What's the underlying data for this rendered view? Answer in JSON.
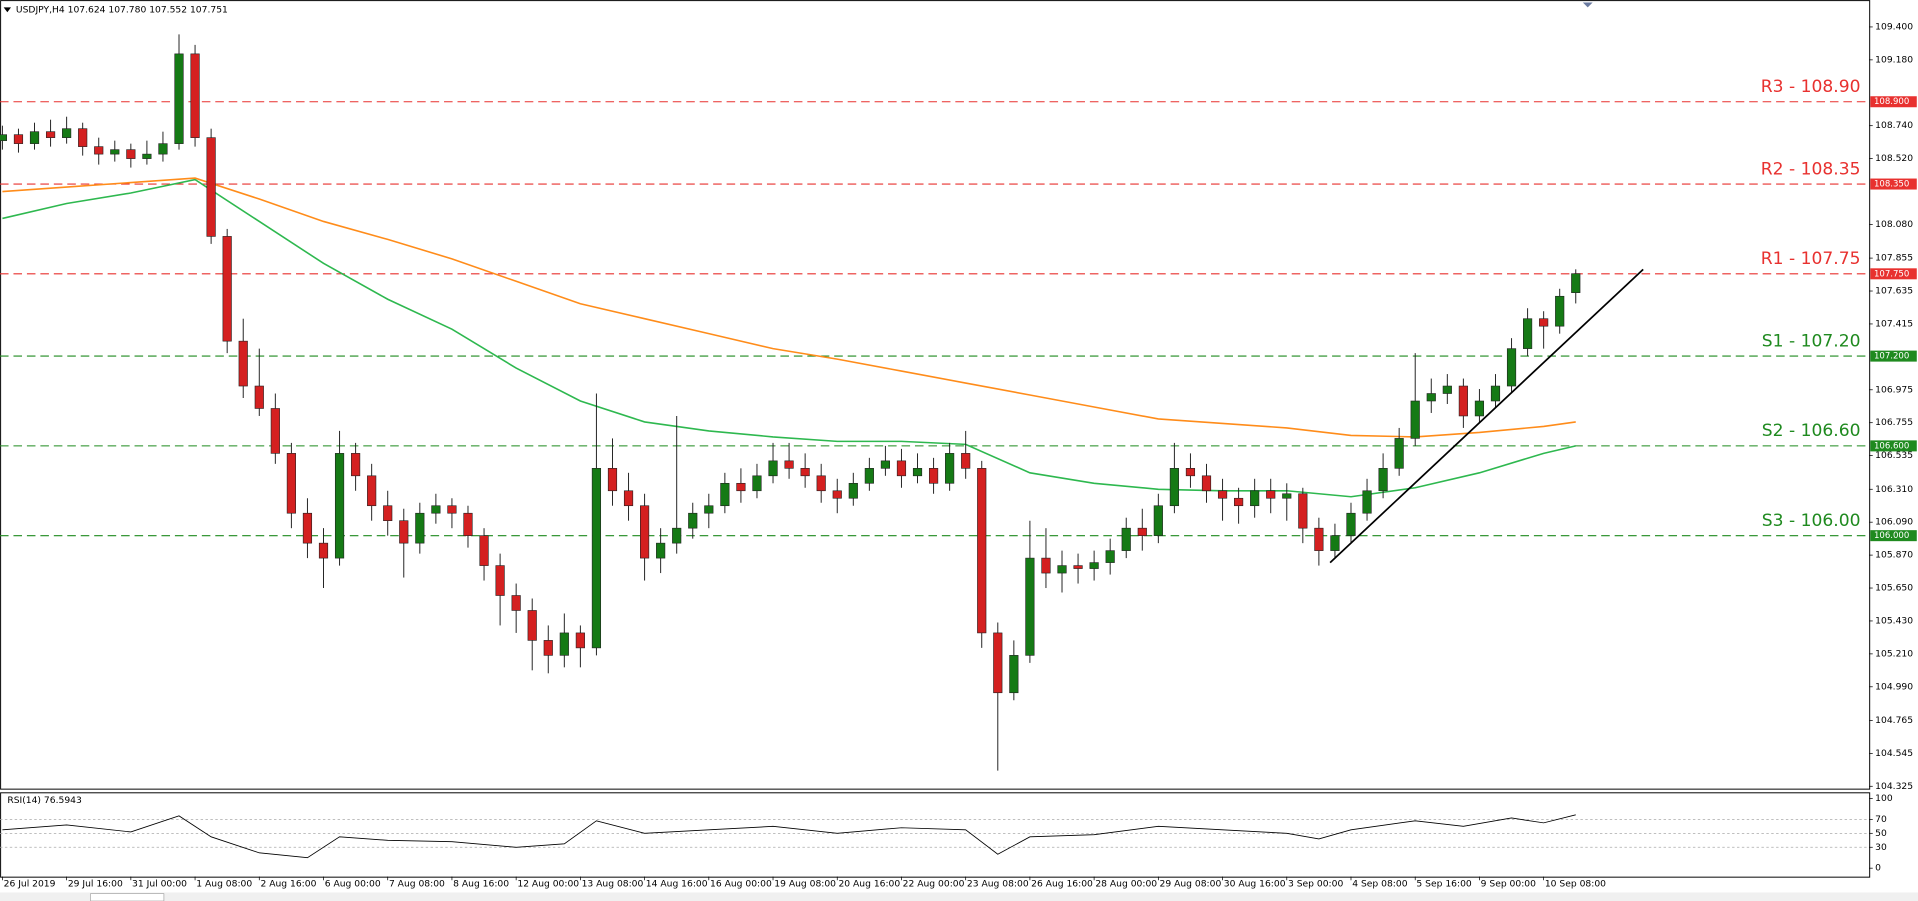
{
  "chart_data": {
    "type": "candlestick",
    "header": "USDJPY,H4  107.624 107.780 107.552 107.751",
    "up_color": "#157a15",
    "down_color": "#d42020",
    "xlim": [
      -0.15,
      116.27
    ],
    "ylim": [
      104.31,
      109.58
    ],
    "yticks": [
      {
        "value": 109.4,
        "label": "109.400"
      },
      {
        "value": 109.18,
        "label": "109.180"
      },
      {
        "value": 108.74,
        "label": "108.740"
      },
      {
        "value": 108.52,
        "label": "108.520"
      },
      {
        "value": 108.08,
        "label": "108.080"
      },
      {
        "value": 107.855,
        "label": "107.855"
      },
      {
        "value": 107.635,
        "label": "107.635"
      },
      {
        "value": 107.415,
        "label": "107.415"
      },
      {
        "value": 106.975,
        "label": "106.975"
      },
      {
        "value": 106.755,
        "label": "106.755"
      },
      {
        "value": 106.535,
        "label": "106.535"
      },
      {
        "value": 106.31,
        "label": "106.310"
      },
      {
        "value": 106.09,
        "label": "106.090"
      },
      {
        "value": 105.87,
        "label": "105.870"
      },
      {
        "value": 105.65,
        "label": "105.650"
      },
      {
        "value": 105.43,
        "label": "105.430"
      },
      {
        "value": 105.21,
        "label": "105.210"
      },
      {
        "value": 104.99,
        "label": "104.990"
      },
      {
        "value": 104.765,
        "label": "104.765"
      },
      {
        "value": 104.545,
        "label": "104.545"
      },
      {
        "value": 104.325,
        "label": "104.325"
      }
    ],
    "xticks": [
      {
        "value": 0,
        "label": "26 Jul 2019"
      },
      {
        "value": 4,
        "label": "29 Jul 16:00"
      },
      {
        "value": 8,
        "label": "31 Jul 00:00"
      },
      {
        "value": 12,
        "label": "1 Aug 08:00"
      },
      {
        "value": 16,
        "label": "2 Aug 16:00"
      },
      {
        "value": 20,
        "label": "6 Aug 00:00"
      },
      {
        "value": 24,
        "label": "7 Aug 08:00"
      },
      {
        "value": 28,
        "label": "8 Aug 16:00"
      },
      {
        "value": 32,
        "label": "12 Aug 00:00"
      },
      {
        "value": 36,
        "label": "13 Aug 08:00"
      },
      {
        "value": 40,
        "label": "14 Aug 16:00"
      },
      {
        "value": 44,
        "label": "16 Aug 00:00"
      },
      {
        "value": 48,
        "label": "19 Aug 08:00"
      },
      {
        "value": 52,
        "label": "20 Aug 16:00"
      },
      {
        "value": 56,
        "label": "22 Aug 00:00"
      },
      {
        "value": 60,
        "label": "23 Aug 08:00"
      },
      {
        "value": 64,
        "label": "26 Aug 16:00"
      },
      {
        "value": 68,
        "label": "28 Aug 00:00"
      },
      {
        "value": 72,
        "label": "29 Aug 08:00"
      },
      {
        "value": 76,
        "label": "30 Aug 16:00"
      },
      {
        "value": 80,
        "label": "3 Sep 00:00"
      },
      {
        "value": 84,
        "label": "4 Sep 08:00"
      },
      {
        "value": 88,
        "label": "5 Sep 16:00"
      },
      {
        "value": 92,
        "label": "9 Sep 00:00"
      },
      {
        "value": 96,
        "label": "10 Sep 08:00"
      }
    ],
    "ohlc": [
      [
        108.64,
        108.74,
        108.58,
        108.68
      ],
      [
        108.68,
        108.72,
        108.56,
        108.62
      ],
      [
        108.62,
        108.76,
        108.58,
        108.7
      ],
      [
        108.7,
        108.78,
        108.6,
        108.66
      ],
      [
        108.66,
        108.8,
        108.62,
        108.72
      ],
      [
        108.72,
        108.76,
        108.54,
        108.6
      ],
      [
        108.6,
        108.66,
        108.48,
        108.55
      ],
      [
        108.55,
        108.64,
        108.5,
        108.58
      ],
      [
        108.58,
        108.62,
        108.46,
        108.52
      ],
      [
        108.52,
        108.64,
        108.48,
        108.55
      ],
      [
        108.55,
        108.7,
        108.5,
        108.62
      ],
      [
        108.62,
        109.35,
        108.58,
        109.22
      ],
      [
        109.22,
        109.28,
        108.6,
        108.66
      ],
      [
        108.66,
        108.72,
        107.95,
        108.0
      ],
      [
        108.0,
        108.05,
        107.22,
        107.3
      ],
      [
        107.3,
        107.45,
        106.92,
        107.0
      ],
      [
        107.0,
        107.25,
        106.8,
        106.85
      ],
      [
        106.85,
        106.95,
        106.48,
        106.55
      ],
      [
        106.55,
        106.62,
        106.05,
        106.15
      ],
      [
        106.15,
        106.25,
        105.85,
        105.95
      ],
      [
        105.95,
        106.05,
        105.65,
        105.85
      ],
      [
        105.85,
        106.7,
        105.8,
        106.55
      ],
      [
        106.55,
        106.62,
        106.3,
        106.4
      ],
      [
        106.4,
        106.48,
        106.1,
        106.2
      ],
      [
        106.2,
        106.3,
        106.0,
        106.1
      ],
      [
        106.1,
        106.18,
        105.72,
        105.95
      ],
      [
        105.95,
        106.22,
        105.88,
        106.15
      ],
      [
        106.15,
        106.28,
        106.08,
        106.2
      ],
      [
        106.2,
        106.25,
        106.05,
        106.15
      ],
      [
        106.15,
        106.2,
        105.92,
        106.0
      ],
      [
        106.0,
        106.05,
        105.7,
        105.8
      ],
      [
        105.8,
        105.88,
        105.4,
        105.6
      ],
      [
        105.6,
        105.68,
        105.35,
        105.5
      ],
      [
        105.5,
        105.58,
        105.1,
        105.3
      ],
      [
        105.3,
        105.4,
        105.08,
        105.2
      ],
      [
        105.2,
        105.48,
        105.12,
        105.35
      ],
      [
        105.35,
        105.4,
        105.12,
        105.25
      ],
      [
        105.25,
        106.95,
        105.2,
        106.45
      ],
      [
        106.45,
        106.65,
        106.2,
        106.3
      ],
      [
        106.3,
        106.42,
        106.1,
        106.2
      ],
      [
        106.2,
        106.28,
        105.7,
        105.85
      ],
      [
        105.85,
        106.05,
        105.75,
        105.95
      ],
      [
        105.95,
        106.8,
        105.88,
        106.05
      ],
      [
        106.05,
        106.22,
        105.98,
        106.15
      ],
      [
        106.15,
        106.28,
        106.05,
        106.2
      ],
      [
        106.2,
        106.42,
        106.15,
        106.35
      ],
      [
        106.35,
        106.45,
        106.22,
        106.3
      ],
      [
        106.3,
        106.48,
        106.25,
        106.4
      ],
      [
        106.4,
        106.62,
        106.35,
        106.5
      ],
      [
        106.5,
        106.62,
        106.38,
        106.45
      ],
      [
        106.45,
        106.55,
        106.32,
        106.4
      ],
      [
        106.4,
        106.48,
        106.22,
        106.3
      ],
      [
        106.3,
        106.38,
        106.15,
        106.25
      ],
      [
        106.25,
        106.42,
        106.2,
        106.35
      ],
      [
        106.35,
        106.52,
        106.3,
        106.45
      ],
      [
        106.45,
        106.6,
        106.4,
        106.5
      ],
      [
        106.5,
        106.58,
        106.32,
        106.4
      ],
      [
        106.4,
        106.55,
        106.35,
        106.45
      ],
      [
        106.45,
        106.52,
        106.28,
        106.35
      ],
      [
        106.35,
        106.62,
        106.3,
        106.55
      ],
      [
        106.55,
        106.7,
        106.38,
        106.45
      ],
      [
        106.45,
        106.5,
        105.25,
        105.35
      ],
      [
        105.35,
        105.42,
        104.43,
        104.95
      ],
      [
        104.95,
        105.3,
        104.9,
        105.2
      ],
      [
        105.2,
        106.1,
        105.15,
        105.85
      ],
      [
        105.85,
        106.05,
        105.65,
        105.75
      ],
      [
        105.75,
        105.9,
        105.62,
        105.8
      ],
      [
        105.8,
        105.88,
        105.68,
        105.78
      ],
      [
        105.78,
        105.9,
        105.7,
        105.82
      ],
      [
        105.82,
        105.98,
        105.74,
        105.9
      ],
      [
        105.9,
        106.12,
        105.85,
        106.05
      ],
      [
        106.05,
        106.18,
        105.9,
        106.0
      ],
      [
        106.0,
        106.28,
        105.95,
        106.2
      ],
      [
        106.2,
        106.62,
        106.15,
        106.45
      ],
      [
        106.45,
        106.55,
        106.32,
        106.4
      ],
      [
        106.4,
        106.48,
        106.22,
        106.3
      ],
      [
        106.3,
        106.38,
        106.1,
        106.25
      ],
      [
        106.25,
        106.32,
        106.08,
        106.2
      ],
      [
        106.2,
        106.38,
        106.12,
        106.3
      ],
      [
        106.3,
        106.38,
        106.15,
        106.25
      ],
      [
        106.25,
        106.35,
        106.1,
        106.28
      ],
      [
        106.28,
        106.32,
        105.95,
        106.05
      ],
      [
        106.05,
        106.12,
        105.8,
        105.9
      ],
      [
        105.9,
        106.08,
        105.85,
        106.0
      ],
      [
        106.0,
        106.22,
        105.95,
        106.15
      ],
      [
        106.15,
        106.38,
        106.1,
        106.3
      ],
      [
        106.3,
        106.55,
        106.25,
        106.45
      ],
      [
        106.45,
        106.72,
        106.4,
        106.65
      ],
      [
        106.65,
        107.22,
        106.6,
        106.9
      ],
      [
        106.9,
        107.05,
        106.82,
        106.95
      ],
      [
        106.95,
        107.08,
        106.88,
        107.0
      ],
      [
        107.0,
        107.05,
        106.72,
        106.8
      ],
      [
        106.8,
        106.98,
        106.75,
        106.9
      ],
      [
        106.9,
        107.08,
        106.85,
        107.0
      ],
      [
        107.0,
        107.32,
        106.95,
        107.25
      ],
      [
        107.25,
        107.52,
        107.2,
        107.45
      ],
      [
        107.45,
        107.5,
        107.25,
        107.4
      ],
      [
        107.4,
        107.65,
        107.35,
        107.6
      ],
      [
        107.624,
        107.78,
        107.552,
        107.751
      ]
    ],
    "moving_averages": [
      {
        "color": "#2eb84f",
        "x": [
          0,
          4,
          8,
          12,
          16,
          20,
          24,
          28,
          32,
          36,
          40,
          44,
          48,
          52,
          56,
          60,
          64,
          68,
          72,
          76,
          80,
          84,
          88,
          92,
          96,
          98
        ],
        "values": [
          108.12,
          108.22,
          108.29,
          108.38,
          108.1,
          107.82,
          107.58,
          107.38,
          107.12,
          106.9,
          106.76,
          106.7,
          106.66,
          106.63,
          106.63,
          106.61,
          106.42,
          106.35,
          106.31,
          106.3,
          106.3,
          106.26,
          106.32,
          106.42,
          106.55,
          106.6
        ]
      },
      {
        "color": "#ff8c1a",
        "x": [
          0,
          4,
          8,
          12,
          16,
          20,
          24,
          28,
          32,
          36,
          40,
          44,
          48,
          52,
          56,
          60,
          64,
          68,
          72,
          76,
          80,
          84,
          88,
          92,
          96,
          98
        ],
        "values": [
          108.3,
          108.33,
          108.36,
          108.39,
          108.25,
          108.1,
          107.98,
          107.85,
          107.7,
          107.55,
          107.45,
          107.35,
          107.25,
          107.18,
          107.1,
          107.02,
          106.94,
          106.86,
          106.78,
          106.75,
          106.72,
          106.67,
          106.66,
          106.69,
          106.73,
          106.76
        ]
      }
    ],
    "levels": [
      {
        "label": "R3 - 108.90",
        "value": 108.9,
        "axis_label": "108.900",
        "color": "#e8312f"
      },
      {
        "label": "R2 - 108.35",
        "value": 108.35,
        "axis_label": "108.350",
        "color": "#e8312f"
      },
      {
        "label": "R1 - 107.75",
        "value": 107.75,
        "axis_label": "107.750",
        "color": "#e8312f"
      },
      {
        "label": "S1 - 107.20",
        "value": 107.2,
        "axis_label": "107.200",
        "color": "#1f8a1f"
      },
      {
        "label": "S2 - 106.60",
        "value": 106.6,
        "axis_label": "106.600",
        "color": "#1f8a1f"
      },
      {
        "label": "S3 - 106.00",
        "value": 106.0,
        "axis_label": "106.000",
        "color": "#1f8a1f"
      }
    ],
    "trendline": {
      "color": "#000000",
      "x": [
        82.7,
        102.2
      ],
      "y": [
        105.82,
        107.78
      ]
    },
    "rsi": {
      "title": "RSI(14) 76.5943",
      "color": "#000000",
      "ylim": [
        -12,
        109
      ],
      "yticks": [
        100,
        70,
        50,
        30,
        0
      ],
      "guides": [
        70,
        50,
        30
      ],
      "x": [
        0,
        4,
        8,
        11,
        13,
        16,
        19,
        21,
        24,
        28,
        32,
        35,
        37,
        40,
        44,
        48,
        52,
        56,
        60,
        62,
        64,
        68,
        72,
        76,
        80,
        82,
        84,
        88,
        91,
        94,
        96,
        98
      ],
      "values": [
        55,
        62,
        52,
        75,
        45,
        22,
        15,
        45,
        40,
        38,
        30,
        35,
        68,
        50,
        55,
        60,
        50,
        58,
        55,
        20,
        45,
        48,
        60,
        55,
        50,
        42,
        55,
        68,
        60,
        72,
        65,
        76.59
      ]
    }
  }
}
